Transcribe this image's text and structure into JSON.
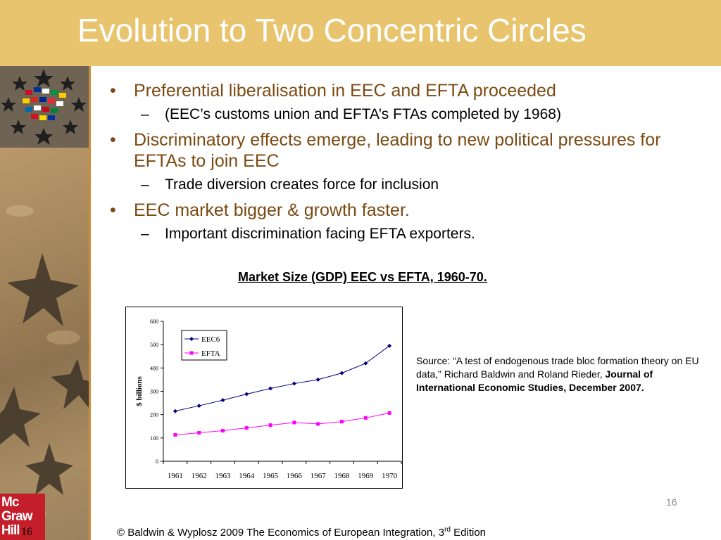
{
  "slide": {
    "title": "Evolution to Two Concentric Circles",
    "page_number": "16",
    "small_page_number": "16"
  },
  "bullets": [
    {
      "text": "Preferential liberalisation in EEC and EFTA proceeded",
      "subs": [
        "(EEC’s customs union and EFTA’s FTAs completed by 1968)"
      ]
    },
    {
      "text": "Discriminatory effects emerge, leading to new political pressures for EFTAs to join EEC",
      "subs": [
        "Trade diversion creates force for inclusion"
      ]
    },
    {
      "text": "EEC market bigger & growth faster.",
      "subs": [
        "Important discrimination facing EFTA exporters."
      ]
    }
  ],
  "bullet_glyph": "•",
  "sub_glyph": "–",
  "chart_heading": "Market Size (GDP) EEC vs EFTA, 1960-70.",
  "source": {
    "prefix": "Source: “A test of endogenous trade bloc formation theory on EU data,” Richard Baldwin and Roland Rieder, ",
    "journal": "Journal of International Economic Studies, December 2007."
  },
  "footer": {
    "text": "© Baldwin & Wyplosz 2009 The Economics of European Integration, 3",
    "sup": "rd",
    "suffix": " Edition"
  },
  "logo": {
    "lines": [
      "Mc",
      "Graw",
      "Hill"
    ]
  },
  "colors": {
    "title_bar": "#e9c46e",
    "bullet_text": "#7b4a12",
    "eec": "#000080",
    "efta": "#ff00ff",
    "logo_red": "#c41e2a"
  },
  "chart_data": {
    "type": "line",
    "title": "",
    "xlabel": "",
    "ylabel": "$ billions",
    "categories": [
      "1961",
      "1962",
      "1963",
      "1964",
      "1965",
      "1966",
      "1967",
      "1968",
      "1969",
      "1970"
    ],
    "ylim": [
      0,
      600
    ],
    "yticks": [
      0,
      100,
      200,
      300,
      400,
      500,
      600
    ],
    "legend_position": "top-left",
    "series": [
      {
        "name": "EEC6",
        "color": "#000080",
        "marker": "diamond",
        "values": [
          215,
          238,
          262,
          288,
          312,
          333,
          350,
          378,
          420,
          495
        ]
      },
      {
        "name": "EFTA",
        "color": "#ff00ff",
        "marker": "square",
        "values": [
          113,
          122,
          131,
          143,
          155,
          166,
          160,
          170,
          186,
          207
        ]
      }
    ]
  }
}
